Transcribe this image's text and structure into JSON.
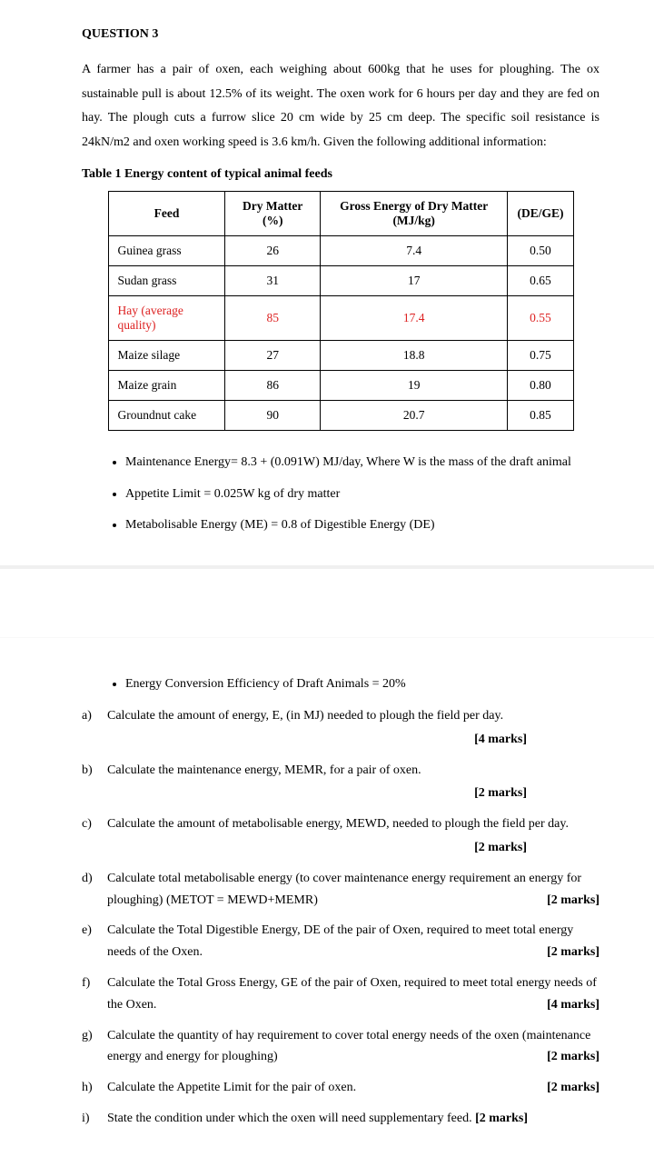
{
  "question_label": "QUESTION 3",
  "intro": "A farmer has a pair of oxen, each weighing about 600kg that he uses for ploughing. The ox sustainable pull is about 12.5% of its weight. The oxen work for 6 hours per day and they are fed on hay. The plough cuts a furrow slice 20 cm wide by 25 cm deep. The specific soil resistance is 24kN/m2 and oxen working speed is 3.6 km/h. Given the following additional information:",
  "table_caption": "Table 1 Energy content of typical animal feeds",
  "table": {
    "headers": [
      "Feed",
      "Dry Matter (%)",
      "Gross Energy of Dry Matter (MJ/kg)",
      "(DE/GE)"
    ],
    "rows": [
      {
        "cells": [
          "Guinea grass",
          "26",
          "7.4",
          "0.50"
        ],
        "highlight": false
      },
      {
        "cells": [
          "Sudan grass",
          "31",
          "17",
          "0.65"
        ],
        "highlight": false
      },
      {
        "cells": [
          "Hay (average quality)",
          "85",
          "17.4",
          "0.55"
        ],
        "highlight": true
      },
      {
        "cells": [
          "Maize silage",
          "27",
          "18.8",
          "0.75"
        ],
        "highlight": false
      },
      {
        "cells": [
          "Maize grain",
          "86",
          "19",
          "0.80"
        ],
        "highlight": false
      },
      {
        "cells": [
          "Groundnut cake",
          "90",
          "20.7",
          "0.85"
        ],
        "highlight": false
      }
    ],
    "highlight_color": "#d22222"
  },
  "bullets1": [
    "Maintenance Energy= 8.3 + (0.091W) MJ/day, Where W is the mass of the draft animal",
    "Appetite Limit = 0.025W kg of dry matter",
    "Metabolisable Energy (ME) = 0.8 of Digestible Energy (DE)"
  ],
  "bullets2": [
    "Energy Conversion Efficiency of Draft Animals = 20%"
  ],
  "parts": [
    {
      "lab": "a)",
      "text": "Calculate the amount of energy, E, (in MJ) needed to plough the field per day.",
      "marks": "[4 marks]",
      "marks_below": true
    },
    {
      "lab": "b)",
      "text": "Calculate the maintenance energy, MEMR, for a pair of oxen.",
      "marks": "[2 marks]",
      "marks_below": true,
      "sub": "MR",
      "sub_after": "ME"
    },
    {
      "lab": "c)",
      "text": "Calculate the amount of metabolisable energy, MEWD, needed to plough the field per day.",
      "marks": "[2 marks]",
      "marks_below": true,
      "sub": "WD",
      "sub_after": "ME"
    },
    {
      "lab": "d)",
      "text": "Calculate total metabolisable energy (to cover maintenance energy requirement an energy for ploughing) (METOT = MEWD+MEMR)",
      "marks": "[2 marks]",
      "marks_below": false
    },
    {
      "lab": "e)",
      "text": "Calculate the Total Digestible Energy, DE of the pair of Oxen, required to meet total energy needs of the Oxen.",
      "marks": "[2 marks]",
      "marks_below": false
    },
    {
      "lab": "f)",
      "text": "Calculate the Total Gross Energy, GE of the pair of Oxen, required to meet total energy needs of the Oxen.",
      "marks": "[4 marks]",
      "marks_below": false
    },
    {
      "lab": "g)",
      "text": "Calculate the quantity of hay requirement to cover total energy needs of the oxen (maintenance energy and energy for ploughing)",
      "marks": "[2 marks]",
      "marks_below": false
    },
    {
      "lab": "h)",
      "text": "Calculate the Appetite Limit for the pair of oxen.",
      "marks": "[2 marks]",
      "marks_below": false
    },
    {
      "lab": "i)",
      "text": "State the condition under which the oxen will need supplementary feed.",
      "marks": "[2 marks]",
      "marks_below": false,
      "inline_marks": true
    }
  ]
}
